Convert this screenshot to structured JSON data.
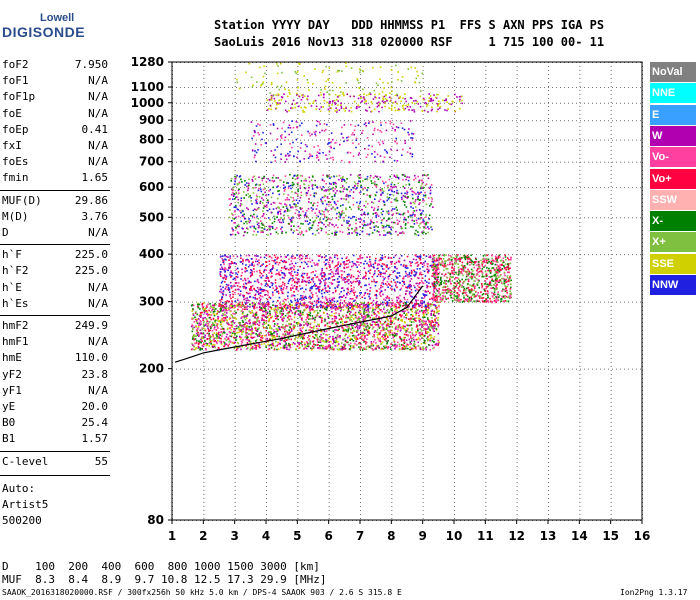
{
  "logo": {
    "top": "Lowell",
    "main": "DIGISONDE"
  },
  "header": {
    "line1": "Station YYYY DAY   DDD HHMMSS P1  FFS S AXN PPS IGA PS",
    "line2": "SaoLuis 2016 Nov13 318 020000 RSF     1 715 100 00- 11"
  },
  "params": [
    {
      "name": "foF2",
      "value": "7.950"
    },
    {
      "name": "foF1",
      "value": "N/A"
    },
    {
      "name": "foF1p",
      "value": "N/A"
    },
    {
      "name": "foE",
      "value": "N/A"
    },
    {
      "name": "foEp",
      "value": "0.41"
    },
    {
      "name": "fxI",
      "value": "N/A"
    },
    {
      "name": "foEs",
      "value": "N/A"
    },
    {
      "name": "fmin",
      "value": "1.65"
    },
    {
      "name": "MUF(D)",
      "value": "29.86"
    },
    {
      "name": "M(D)",
      "value": "3.76"
    },
    {
      "name": "D",
      "value": "N/A"
    },
    {
      "name": "h`F",
      "value": "225.0"
    },
    {
      "name": "h`F2",
      "value": "225.0"
    },
    {
      "name": "h`E",
      "value": "N/A"
    },
    {
      "name": "h`Es",
      "value": "N/A"
    },
    {
      "name": "hmF2",
      "value": "249.9"
    },
    {
      "name": "hmF1",
      "value": "N/A"
    },
    {
      "name": "hmE",
      "value": "110.0"
    },
    {
      "name": "yF2",
      "value": "23.8"
    },
    {
      "name": "yF1",
      "value": "N/A"
    },
    {
      "name": "yE",
      "value": "20.0"
    },
    {
      "name": "B0",
      "value": "25.4"
    },
    {
      "name": "B1",
      "value": "1.57"
    },
    {
      "name": "C-level",
      "value": "55"
    }
  ],
  "auto": {
    "line1": "Auto:",
    "line2": "Artist5",
    "line3": "500200"
  },
  "legend": [
    {
      "label": "NoVal",
      "color": "#808080"
    },
    {
      "label": "NNE",
      "color": "#00ffff"
    },
    {
      "label": "E",
      "color": "#3aa0ff"
    },
    {
      "label": "W",
      "color": "#b000b0"
    },
    {
      "label": "Vo-",
      "color": "#ff40a0"
    },
    {
      "label": "Vo+",
      "color": "#ff0040"
    },
    {
      "label": "SSW",
      "color": "#ffb0b0"
    },
    {
      "label": "X-",
      "color": "#008000"
    },
    {
      "label": "X+",
      "color": "#80c040"
    },
    {
      "label": "SSE",
      "color": "#d0d000"
    },
    {
      "label": "NNW",
      "color": "#2020e0"
    }
  ],
  "bottom": {
    "d_line": "D    100  200  400  600  800 1000 1500 3000 [km]",
    "muf_line": "MUF  8.3  8.4  8.9  9.7 10.8 12.5 17.3 29.9 [MHz]"
  },
  "footer": {
    "left": "SAAOK_2016318020000.RSF / 300fx256h 50 kHz 5.0 km / DPS-4 SAAOK 903 / 2.6 S 315.8 E",
    "right": "Ion2Png 1.3.17"
  },
  "chart_data": {
    "type": "scatter",
    "xlim": [
      1,
      16
    ],
    "ylim": [
      80,
      1280
    ],
    "y_scale": "log",
    "x_ticks": [
      1,
      2,
      3,
      4,
      5,
      6,
      7,
      8,
      9,
      10,
      11,
      12,
      13,
      14,
      15,
      16
    ],
    "y_ticks": [
      80,
      200,
      300,
      400,
      500,
      600,
      700,
      800,
      900,
      1000,
      1100,
      1280
    ],
    "grid": true,
    "scaled_trace_x": [
      1.1,
      1.5,
      2,
      2.5,
      3,
      3.5,
      4,
      4.5,
      5,
      5.5,
      6,
      6.5,
      7,
      7.5,
      8,
      8.5,
      9
    ],
    "scaled_trace_y": [
      208,
      213,
      220,
      224,
      228,
      232,
      236,
      240,
      245,
      250,
      255,
      260,
      265,
      270,
      275,
      290,
      330
    ],
    "echo_regions": [
      {
        "name": "F-trace-low",
        "x": [
          1.6,
          9.5
        ],
        "y": [
          225,
          300
        ],
        "colors": [
          "#ff0040",
          "#ff40a0",
          "#80c040",
          "#008000",
          "#d0d000",
          "#b000b0"
        ],
        "density": 2600
      },
      {
        "name": "F-spread",
        "x": [
          2.5,
          9.5
        ],
        "y": [
          290,
          400
        ],
        "colors": [
          "#2020e0",
          "#b000b0",
          "#ff0040",
          "#ff40a0"
        ],
        "density": 1500
      },
      {
        "name": "F-high-freq",
        "x": [
          9.3,
          11.8
        ],
        "y": [
          300,
          400
        ],
        "colors": [
          "#ff0040",
          "#008000",
          "#80c040",
          "#ff40a0"
        ],
        "density": 900
      },
      {
        "name": "second-hop",
        "x": [
          2.8,
          9.3
        ],
        "y": [
          450,
          650
        ],
        "colors": [
          "#ff40a0",
          "#b000b0",
          "#2020e0",
          "#80c040",
          "#008000"
        ],
        "density": 1200
      },
      {
        "name": "third-hop",
        "x": [
          3.5,
          8.7
        ],
        "y": [
          700,
          900
        ],
        "colors": [
          "#ff40a0",
          "#b000b0",
          "#2020e0"
        ],
        "density": 250
      },
      {
        "name": "upper-band",
        "x": [
          4,
          10.3
        ],
        "y": [
          950,
          1060
        ],
        "colors": [
          "#d0d000",
          "#b000b0"
        ],
        "density": 300
      },
      {
        "name": "top-scatter",
        "x": [
          3,
          9
        ],
        "y": [
          1050,
          1280
        ],
        "colors": [
          "#d0d000",
          "#80c040"
        ],
        "density": 120
      }
    ]
  }
}
